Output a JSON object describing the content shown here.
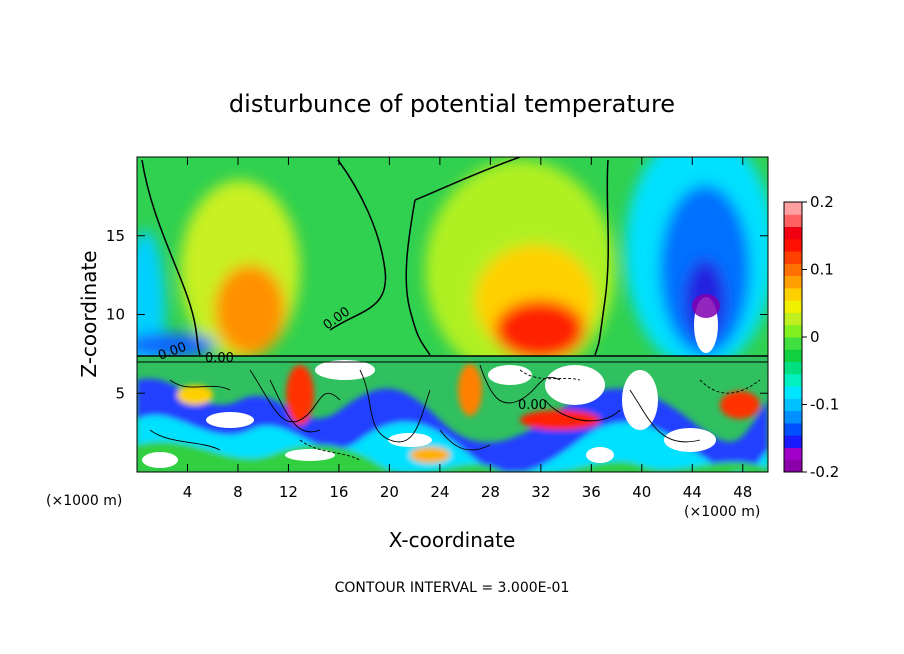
{
  "chart_data": {
    "type": "heatmap",
    "title": "disturbunce of potential temperature",
    "xlabel": "X-coordinate",
    "ylabel": "Z-coordinate",
    "x_unit_label": "(×1000 m)",
    "z_unit_label": "(×1000 m)",
    "xlim": [
      0,
      50
    ],
    "ylim": [
      0,
      20
    ],
    "x_ticks": [
      4,
      8,
      12,
      16,
      20,
      24,
      28,
      32,
      36,
      40,
      44,
      48
    ],
    "y_ticks": [
      5,
      10,
      15
    ],
    "colorbar": {
      "min": -0.2,
      "max": 0.2,
      "ticks": [
        "0.2",
        "0.1",
        "0",
        "-0.1",
        "-0.2"
      ],
      "colors": [
        "#8b00a8",
        "#a000c8",
        "#1a1aff",
        "#0050ff",
        "#0090ff",
        "#00c0ff",
        "#00e5ff",
        "#00f0c0",
        "#00e080",
        "#10d040",
        "#40e040",
        "#80f020",
        "#c0f020",
        "#f0f000",
        "#ffd000",
        "#ffa000",
        "#ff7000",
        "#ff4000",
        "#ff1000",
        "#f00010",
        "#ff6060",
        "#ffa0a0"
      ]
    },
    "contour_label": "0.00",
    "footer": "CONTOUR INTERVAL = 3.000E-01"
  }
}
